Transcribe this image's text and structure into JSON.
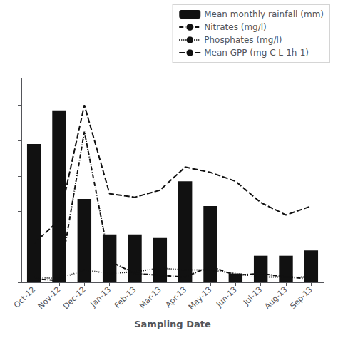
{
  "chart_data": {
    "type": "bar",
    "xlabel": "Sampling Date",
    "categories": [
      "Oct-12",
      "Nov-12",
      "Dec-12",
      "Jan-13",
      "Feb-13",
      "Mar-13",
      "Apr-13",
      "May-13",
      "Jun-13",
      "Jul-13",
      "Aug-13",
      "Sep-13"
    ],
    "series": [
      {
        "name": "Mean monthly rainfall (mm)",
        "type": "bar",
        "color": "#111111",
        "values": [
          78,
          97,
          47,
          27,
          27,
          25,
          57,
          43,
          5,
          15,
          15,
          18
        ]
      },
      {
        "name": "Nitrates (mg/l)",
        "type": "line",
        "color": "#111111",
        "line_style": "dashdot",
        "values": [
          2,
          1,
          85,
          12,
          5,
          4,
          3,
          9,
          4,
          5,
          3,
          2
        ]
      },
      {
        "name": "Phosphates (mg/l)",
        "type": "line",
        "color": "#111111",
        "line_style": "dotted",
        "values": [
          3,
          2,
          7,
          5,
          6,
          8,
          7,
          7,
          5,
          3,
          3,
          3
        ]
      },
      {
        "name": "Mean GPP (mg C L-1h-1)",
        "type": "line",
        "color": "#111111",
        "line_style": "dashed",
        "values": [
          22,
          35,
          100,
          50,
          48,
          52,
          65,
          62,
          57,
          45,
          38,
          43
        ]
      }
    ],
    "ylim": [
      0,
      115
    ],
    "yticks": [
      0,
      20,
      40,
      60,
      80,
      100
    ],
    "tick_labels": "x",
    "grid": false,
    "legend": "upper right"
  }
}
